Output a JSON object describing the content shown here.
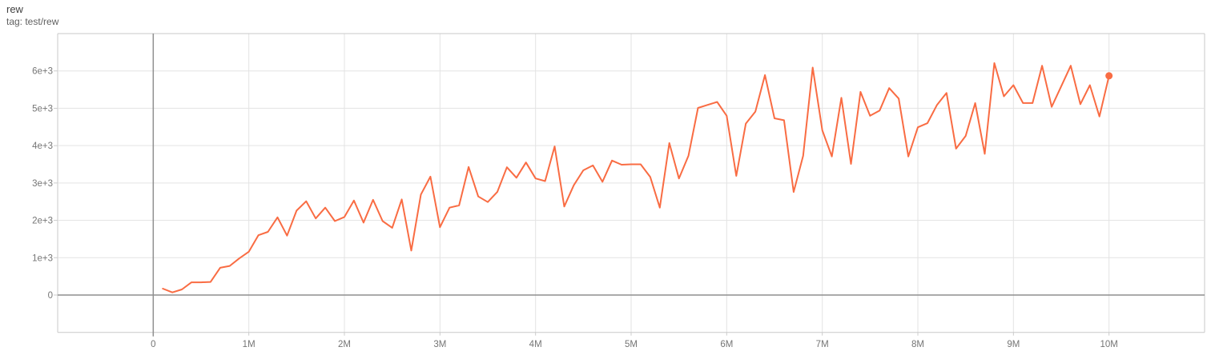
{
  "header": {
    "title": "rew",
    "subtitle": "tag: test/rew"
  },
  "colors": {
    "series": "#f96c43",
    "grid": "#e3e3e3",
    "border": "#c9c9c9",
    "zero_axis": "#8f8f8f",
    "tick": "#cccccc",
    "tick_label": "#757575",
    "title_text": "#424242"
  },
  "chart_data": {
    "type": "line",
    "title": "rew",
    "subtitle": "tag: test/rew",
    "xlabel": "",
    "ylabel": "",
    "x_unit": "steps (millions)",
    "xlim": [
      -1,
      11
    ],
    "ylim": [
      -1000,
      7000
    ],
    "x_grid_step": 1,
    "y_grid_step": 1000,
    "grid": true,
    "legend": "none",
    "end_marker": true,
    "x_ticks": [
      {
        "value": 0,
        "label": "0"
      },
      {
        "value": 1,
        "label": "1M"
      },
      {
        "value": 2,
        "label": "2M"
      },
      {
        "value": 3,
        "label": "3M"
      },
      {
        "value": 4,
        "label": "4M"
      },
      {
        "value": 5,
        "label": "5M"
      },
      {
        "value": 6,
        "label": "6M"
      },
      {
        "value": 7,
        "label": "7M"
      },
      {
        "value": 8,
        "label": "8M"
      },
      {
        "value": 9,
        "label": "9M"
      },
      {
        "value": 10,
        "label": "10M"
      }
    ],
    "y_ticks": [
      {
        "value": 0,
        "label": "0"
      },
      {
        "value": 1000,
        "label": "1e+3"
      },
      {
        "value": 2000,
        "label": "2e+3"
      },
      {
        "value": 3000,
        "label": "3e+3"
      },
      {
        "value": 4000,
        "label": "4e+3"
      },
      {
        "value": 5000,
        "label": "5e+3"
      },
      {
        "value": 6000,
        "label": "6e+3"
      }
    ],
    "series": [
      {
        "name": "test/rew",
        "color": "#f96c43",
        "x": [
          0.1,
          0.2,
          0.3,
          0.4,
          0.5,
          0.6,
          0.7,
          0.8,
          0.9,
          1.0,
          1.1,
          1.2,
          1.3,
          1.4,
          1.5,
          1.6,
          1.7,
          1.8,
          1.9,
          2.0,
          2.1,
          2.2,
          2.3,
          2.4,
          2.5,
          2.6,
          2.7,
          2.8,
          2.9,
          3.0,
          3.1,
          3.2,
          3.3,
          3.4,
          3.5,
          3.6,
          3.7,
          3.8,
          3.9,
          4.0,
          4.1,
          4.2,
          4.3,
          4.4,
          4.5,
          4.6,
          4.7,
          4.8,
          4.9,
          5.0,
          5.1,
          5.2,
          5.3,
          5.4,
          5.5,
          5.6,
          5.7,
          5.8,
          5.9,
          6.0,
          6.1,
          6.2,
          6.3,
          6.4,
          6.5,
          6.6,
          6.7,
          6.8,
          6.9,
          7.0,
          7.1,
          7.2,
          7.3,
          7.4,
          7.5,
          7.6,
          7.7,
          7.8,
          7.9,
          8.0,
          8.1,
          8.2,
          8.3,
          8.4,
          8.5,
          8.6,
          8.7,
          8.8,
          8.9,
          9.0,
          9.1,
          9.2,
          9.3,
          9.4,
          9.5,
          9.6,
          9.7,
          9.8,
          9.9,
          10.0
        ],
        "values": [
          170,
          70,
          150,
          340,
          340,
          350,
          730,
          780,
          980,
          1160,
          1600,
          1690,
          2080,
          1590,
          2260,
          2510,
          2050,
          2340,
          1980,
          2090,
          2530,
          1940,
          2550,
          1980,
          1800,
          2560,
          1190,
          2690,
          3170,
          1815,
          2340,
          2400,
          3430,
          2640,
          2490,
          2760,
          3420,
          3140,
          3550,
          3120,
          3050,
          3980,
          2370,
          2940,
          3340,
          3470,
          3030,
          3600,
          3490,
          3500,
          3500,
          3160,
          2340,
          4070,
          3120,
          3730,
          5010,
          5090,
          5170,
          4800,
          3190,
          4590,
          4910,
          5890,
          4730,
          4680,
          2760,
          3730,
          6090,
          4410,
          3710,
          5280,
          3510,
          5440,
          4800,
          4940,
          5540,
          5260,
          3710,
          4490,
          4600,
          5090,
          5410,
          3920,
          4260,
          5140,
          3780,
          6210,
          5320,
          5620,
          5140,
          5140,
          6140,
          5040,
          5590,
          6140,
          5110,
          5620,
          4780,
          5870
        ]
      }
    ]
  }
}
